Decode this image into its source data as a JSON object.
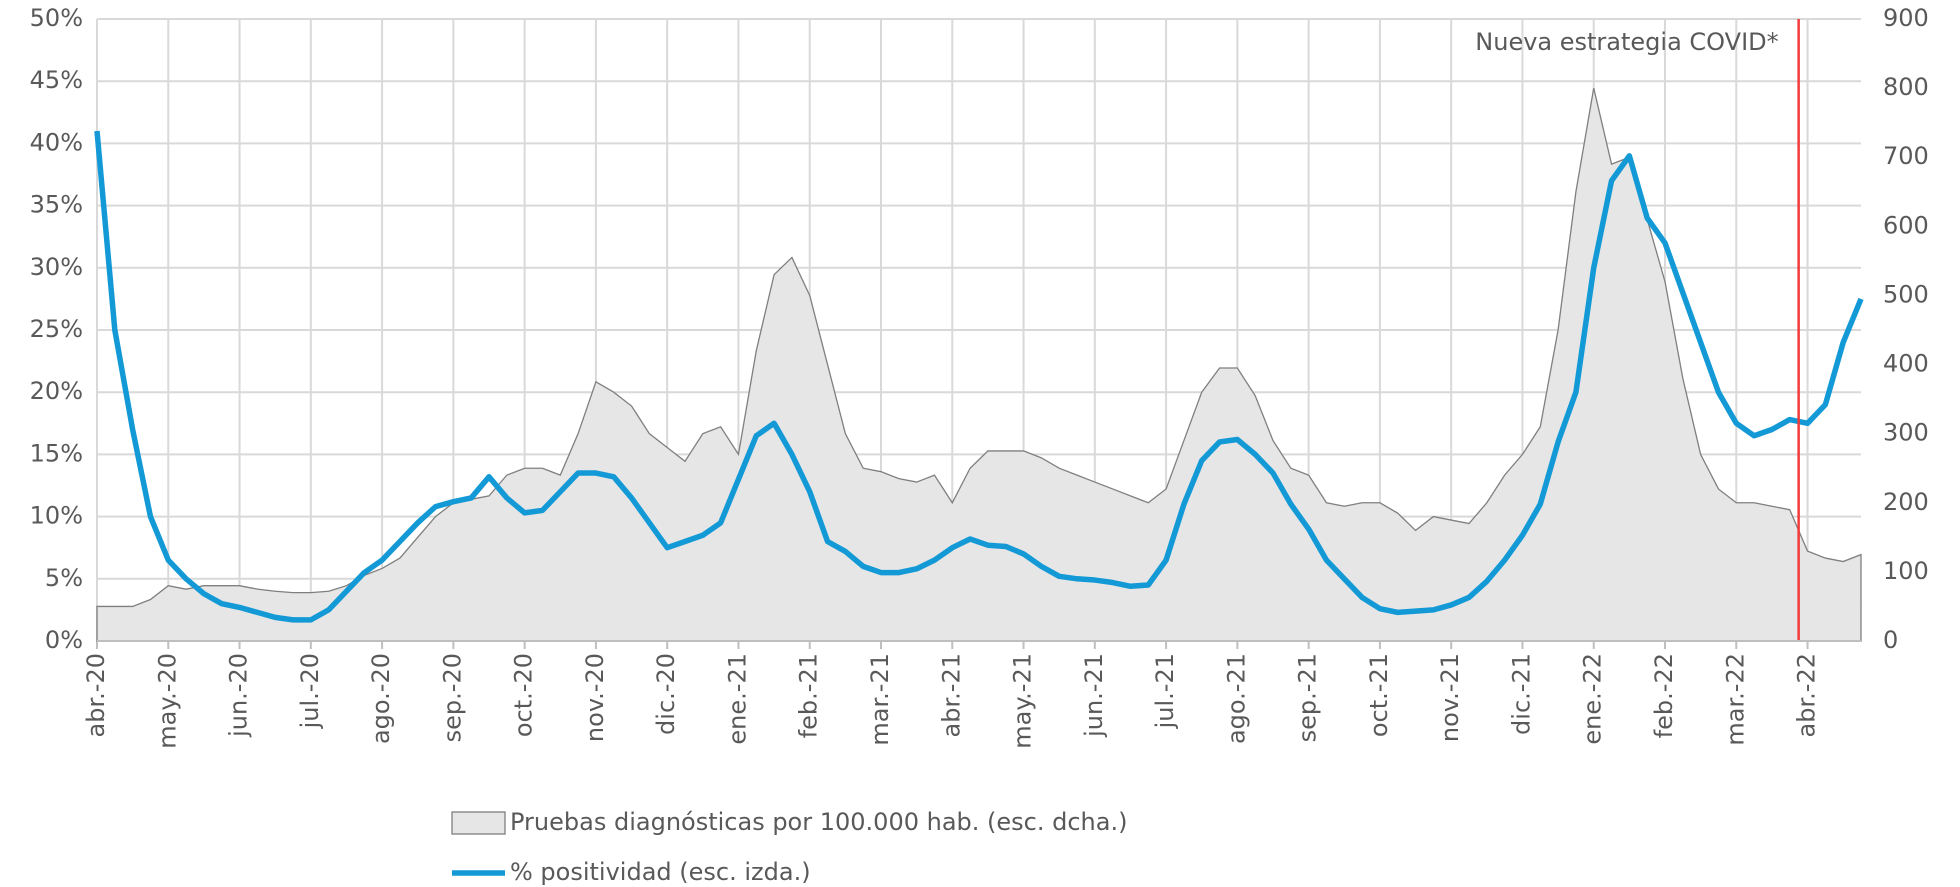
{
  "chart_data": {
    "type": "line",
    "categories": [
      "abr.-20",
      null,
      null,
      null,
      "may.-20",
      null,
      null,
      null,
      "jun.-20",
      null,
      null,
      null,
      "jul.-20",
      null,
      null,
      null,
      "ago.-20",
      null,
      null,
      null,
      "sep.-20",
      null,
      null,
      null,
      "oct.-20",
      null,
      null,
      null,
      "nov.-20",
      null,
      null,
      null,
      "dic.-20",
      null,
      null,
      null,
      "ene.-21",
      null,
      null,
      null,
      "feb.-21",
      null,
      null,
      null,
      "mar.-21",
      null,
      null,
      null,
      "abr.-21",
      null,
      null,
      null,
      "may.-21",
      null,
      null,
      null,
      "jun.-21",
      null,
      null,
      null,
      "jul.-21",
      null,
      null,
      null,
      "ago.-21",
      null,
      null,
      null,
      "sep.-21",
      null,
      null,
      null,
      "oct.-21",
      null,
      null,
      null,
      "nov.-21",
      null,
      null,
      null,
      "dic.-21",
      null,
      null,
      null,
      "ene.-22",
      null,
      null,
      null,
      "feb.-22",
      null,
      null,
      null,
      "mar.-22",
      null,
      null,
      null,
      "abr.-22",
      null,
      null,
      null
    ],
    "series": [
      {
        "name": "Pruebas diagnósticas por 100.000 hab. (esc. dcha.)",
        "type": "area",
        "axis": "y2",
        "color": "#e6e6e6",
        "edge_color": "#7f7f7f",
        "values": [
          50,
          50,
          50,
          60,
          80,
          75,
          80,
          80,
          80,
          75,
          72,
          70,
          70,
          72,
          80,
          95,
          105,
          120,
          150,
          180,
          200,
          205,
          210,
          240,
          250,
          250,
          240,
          300,
          375,
          360,
          340,
          300,
          280,
          260,
          300,
          310,
          270,
          420,
          530,
          555,
          500,
          400,
          300,
          250,
          245,
          235,
          230,
          240,
          200,
          250,
          275,
          275,
          275,
          265,
          250,
          240,
          230,
          220,
          210,
          200,
          220,
          290,
          360,
          395,
          395,
          355,
          290,
          250,
          240,
          200,
          195,
          200,
          200,
          185,
          160,
          180,
          175,
          170,
          200,
          240,
          270,
          310,
          450,
          650,
          800,
          690,
          700,
          610,
          520,
          380,
          270,
          220,
          200,
          200,
          195,
          190,
          130,
          120,
          115,
          125
        ]
      },
      {
        "name": "% positividad (esc. izda.)",
        "type": "line",
        "axis": "y",
        "color": "#139ad6",
        "values": [
          41,
          25,
          17,
          10,
          6.5,
          5,
          3.8,
          3,
          2.7,
          2.3,
          1.9,
          1.7,
          1.7,
          2.5,
          4,
          5.5,
          6.5,
          8,
          9.5,
          10.8,
          11.2,
          11.5,
          13.2,
          11.5,
          10.3,
          10.5,
          12,
          13.5,
          13.5,
          13.2,
          11.5,
          9.5,
          7.5,
          8,
          8.5,
          9.5,
          13,
          16.5,
          17.5,
          15,
          12,
          8,
          7.2,
          6,
          5.5,
          5.5,
          5.8,
          6.5,
          7.5,
          8.2,
          7.7,
          7.6,
          7,
          6,
          5.2,
          5,
          4.9,
          4.7,
          4.4,
          4.5,
          6.5,
          11,
          14.5,
          16,
          16.2,
          15,
          13.5,
          11,
          9,
          6.5,
          5,
          3.5,
          2.6,
          2.3,
          2.4,
          2.5,
          2.9,
          3.5,
          4.8,
          6.5,
          8.5,
          11,
          16,
          20,
          30,
          37,
          39,
          34,
          32,
          28,
          24,
          20,
          17.5,
          16.5,
          17,
          17.8,
          17.5,
          19,
          24,
          27.5
        ]
      }
    ],
    "ylim": [
      0,
      50
    ],
    "yticks": [
      {
        "value": 0,
        "label": "0%"
      },
      {
        "value": 5,
        "label": "5%"
      },
      {
        "value": 10,
        "label": "10%"
      },
      {
        "value": 15,
        "label": "15%"
      },
      {
        "value": 20,
        "label": "20%"
      },
      {
        "value": 25,
        "label": "25%"
      },
      {
        "value": 30,
        "label": "30%"
      },
      {
        "value": 35,
        "label": "35%"
      },
      {
        "value": 40,
        "label": "40%"
      },
      {
        "value": 45,
        "label": "45%"
      },
      {
        "value": 50,
        "label": "50%"
      }
    ],
    "y2lim": [
      0,
      900
    ],
    "y2ticks": [
      0,
      100,
      200,
      300,
      400,
      500,
      600,
      700,
      800,
      900
    ],
    "grid": true,
    "legend": "bottom",
    "annotation": {
      "text": "Nueva estrategia COVID*",
      "color": "#f23b3b"
    }
  }
}
